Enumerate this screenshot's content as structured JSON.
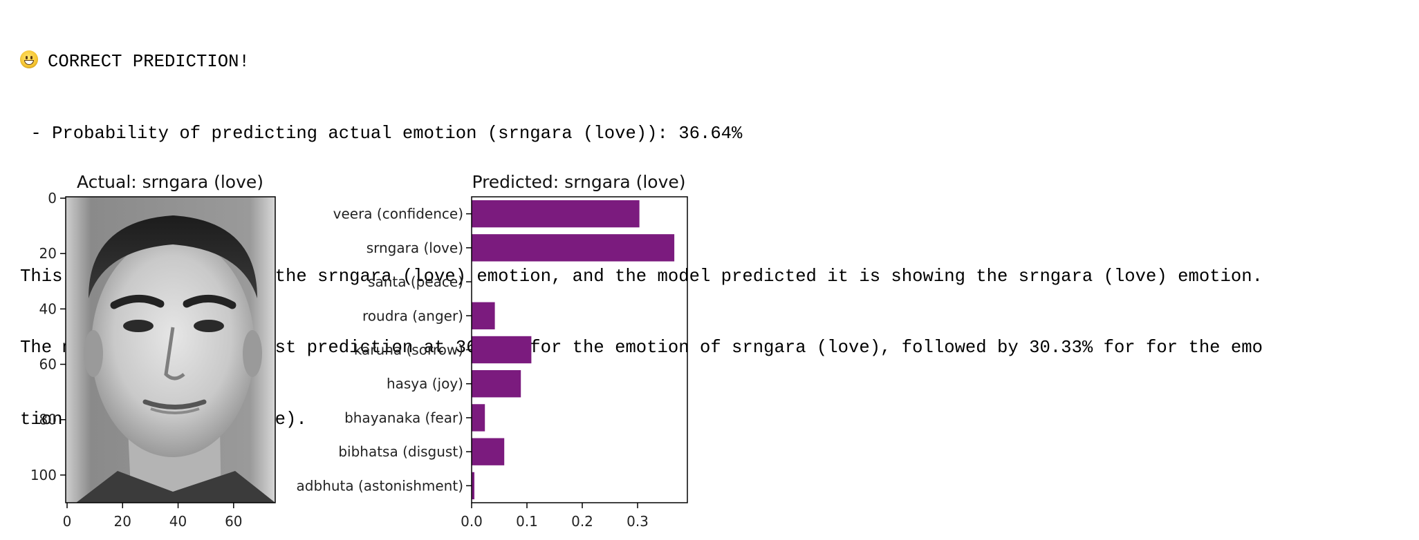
{
  "output": {
    "status_emoji": "grinning-face-icon",
    "status_title": "CORRECT PREDICTION!",
    "probability_line": " - Probability of predicting actual emotion (srngara (love)): 36.64%",
    "explanation_line_1": "This face is expressing the srngara (love) emotion, and the model predicted it is showing the srngara (love) emotion.",
    "explanation_line_2": "The model made the highest prediction at 36.64% for the emotion of srngara (love), followed by 30.33% for for the emo",
    "explanation_line_3": "tion of veera (confidence)."
  },
  "face_plot": {
    "title": "Actual: srngara (love)",
    "x_ticks": [
      "0",
      "20",
      "40",
      "60"
    ],
    "y_ticks": [
      "0",
      "20",
      "40",
      "60",
      "80",
      "100"
    ],
    "image_description": "grayscale face crop"
  },
  "chart_data": {
    "type": "bar",
    "orientation": "horizontal",
    "title": "Predicted: srngara (love)",
    "xlabel": "",
    "ylabel": "",
    "categories": [
      "veera (confidence)",
      "srngara (love)",
      "santa (peace)",
      "roudra (anger)",
      "karuna (sorrow)",
      "hasya (joy)",
      "bhayanaka (fear)",
      "bibhatsa (disgust)",
      "adbhuta (astonishment)"
    ],
    "values": [
      0.3033,
      0.3664,
      0.0,
      0.042,
      0.108,
      0.089,
      0.024,
      0.059,
      0.005
    ],
    "x_ticks": [
      "0.0",
      "0.1",
      "0.2",
      "0.3"
    ],
    "xlim": [
      0,
      0.39
    ],
    "bar_color": "#7b1b7e",
    "grid": false
  }
}
